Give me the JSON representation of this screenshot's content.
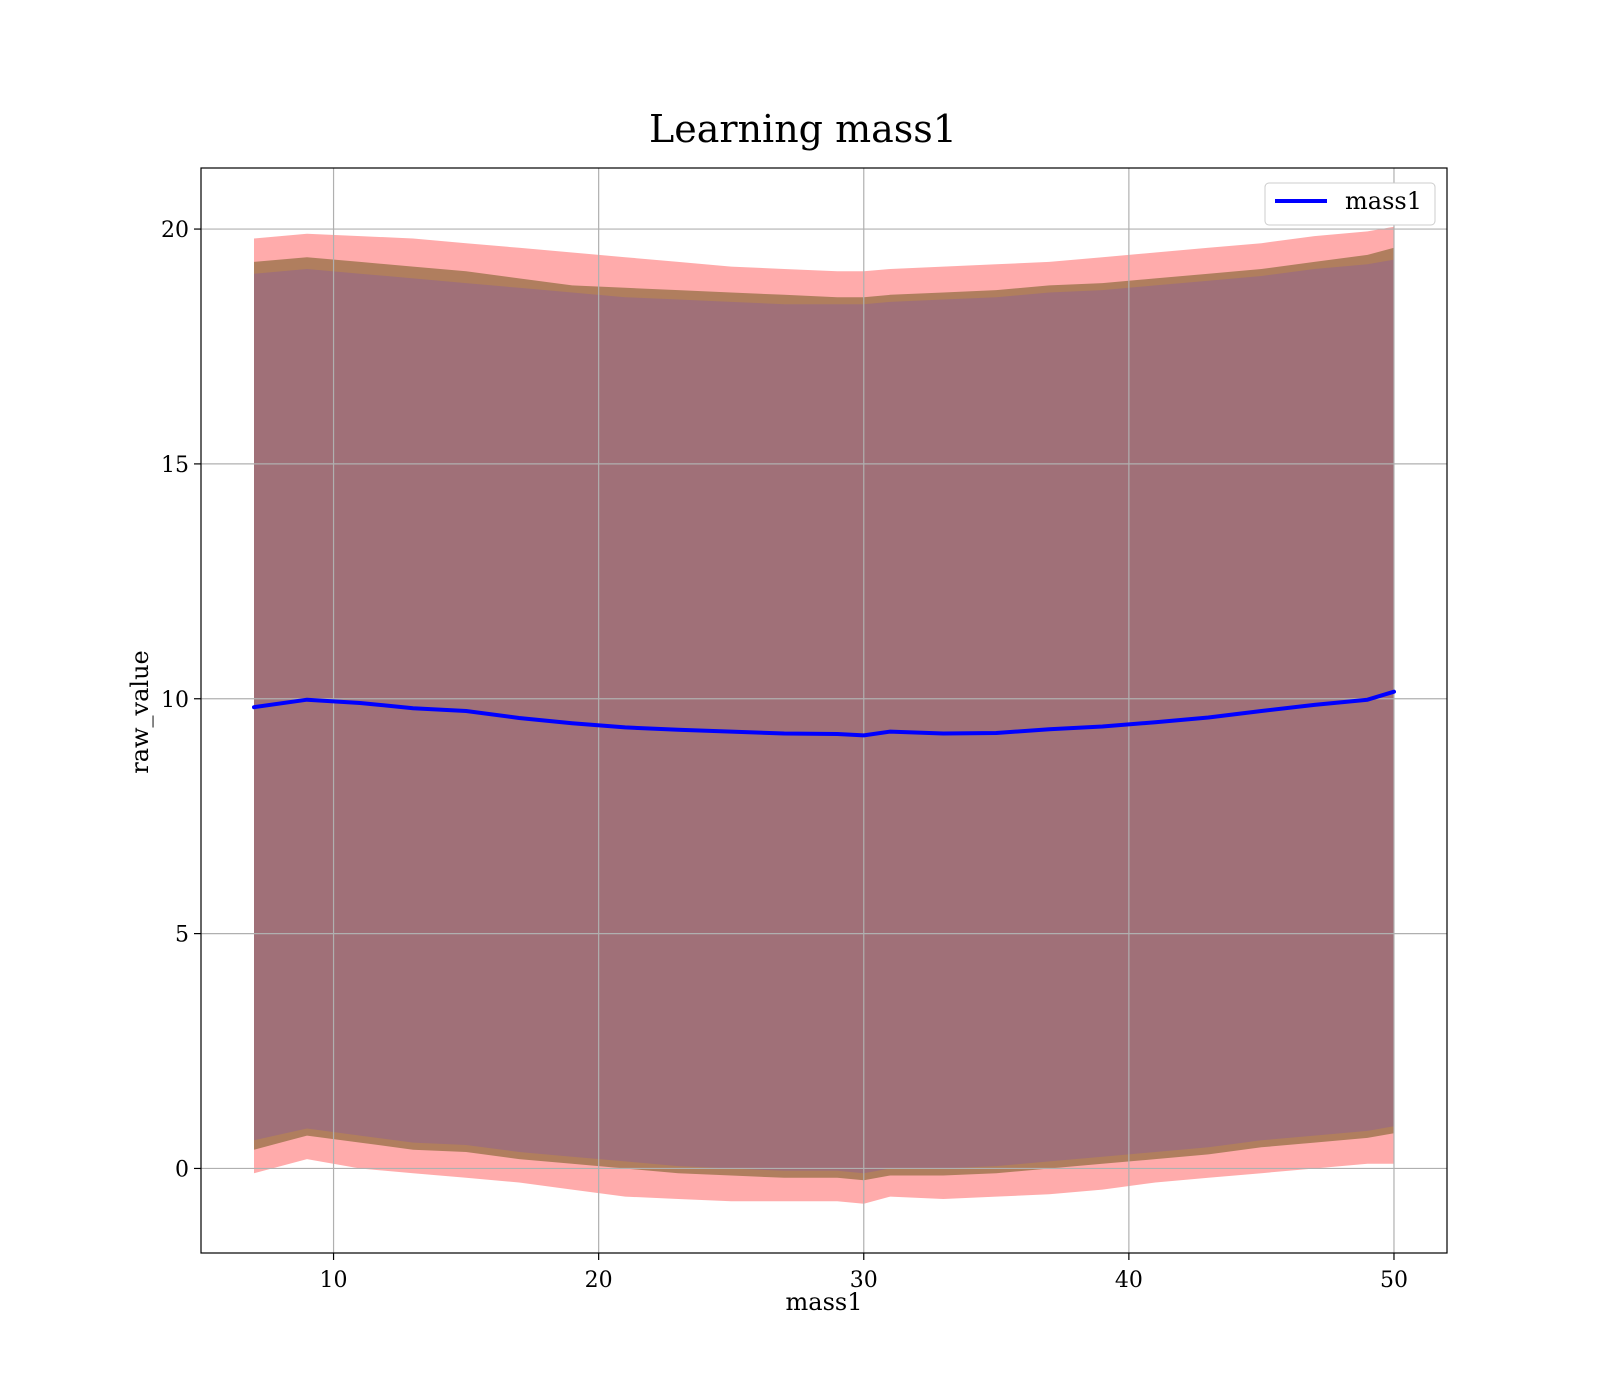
{
  "chart_data": {
    "type": "area",
    "title": "Learning mass1",
    "xlabel": "mass1",
    "ylabel": "raw_value",
    "xlim": [
      5,
      52
    ],
    "ylim": [
      -1.8,
      21.3
    ],
    "x_ticks": [
      10,
      20,
      30,
      40,
      50
    ],
    "y_ticks": [
      0,
      5,
      10,
      15,
      20
    ],
    "grid": true,
    "legend": {
      "placement": "top-right",
      "entries": [
        "mass1"
      ]
    },
    "x": [
      7.0,
      9.0,
      11.0,
      13.0,
      15.0,
      17.0,
      19.0,
      21.0,
      23.0,
      25.0,
      27.0,
      29.0,
      30.0,
      31.0,
      33.0,
      35.0,
      37.0,
      39.0,
      41.0,
      43.0,
      45.0,
      47.0,
      49.0,
      50.0
    ],
    "series": [
      {
        "name": "mass1",
        "color": "#0000ff",
        "values": [
          9.82,
          9.98,
          9.91,
          9.8,
          9.74,
          9.59,
          9.48,
          9.39,
          9.34,
          9.3,
          9.26,
          9.25,
          9.22,
          9.3,
          9.26,
          9.27,
          9.35,
          9.41,
          9.5,
          9.6,
          9.74,
          9.87,
          9.98,
          10.15
        ]
      }
    ],
    "bands": [
      {
        "color": "#ff6666",
        "lower": [
          -0.1,
          0.2,
          0.0,
          -0.1,
          -0.2,
          -0.3,
          -0.45,
          -0.6,
          -0.65,
          -0.7,
          -0.7,
          -0.7,
          -0.75,
          -0.6,
          -0.65,
          -0.6,
          -0.55,
          -0.45,
          -0.3,
          -0.2,
          -0.1,
          0.0,
          0.1,
          0.1
        ],
        "upper": [
          19.8,
          19.9,
          19.85,
          19.8,
          19.7,
          19.6,
          19.5,
          19.4,
          19.3,
          19.2,
          19.15,
          19.1,
          19.1,
          19.15,
          19.2,
          19.25,
          19.3,
          19.4,
          19.5,
          19.6,
          19.7,
          19.85,
          19.95,
          20.05
        ]
      },
      {
        "color": "#b07e5e",
        "lower": [
          0.4,
          0.7,
          0.55,
          0.4,
          0.35,
          0.2,
          0.1,
          0.0,
          -0.1,
          -0.15,
          -0.2,
          -0.2,
          -0.25,
          -0.15,
          -0.15,
          -0.1,
          0.0,
          0.1,
          0.2,
          0.3,
          0.45,
          0.55,
          0.65,
          0.75
        ],
        "upper": [
          19.3,
          19.4,
          19.3,
          19.2,
          19.1,
          18.95,
          18.8,
          18.75,
          18.7,
          18.65,
          18.6,
          18.55,
          18.55,
          18.6,
          18.65,
          18.7,
          18.8,
          18.85,
          18.95,
          19.05,
          19.15,
          19.3,
          19.45,
          19.6
        ]
      },
      {
        "color": "#a07078",
        "lower": [
          0.6,
          0.85,
          0.7,
          0.55,
          0.5,
          0.35,
          0.25,
          0.15,
          0.05,
          0.0,
          -0.05,
          -0.05,
          -0.1,
          0.0,
          0.0,
          0.05,
          0.15,
          0.25,
          0.35,
          0.45,
          0.6,
          0.7,
          0.8,
          0.9
        ],
        "upper": [
          19.05,
          19.15,
          19.05,
          18.95,
          18.85,
          18.75,
          18.65,
          18.55,
          18.5,
          18.45,
          18.4,
          18.4,
          18.4,
          18.45,
          18.5,
          18.55,
          18.65,
          18.7,
          18.8,
          18.9,
          19.0,
          19.15,
          19.25,
          19.35
        ]
      }
    ]
  }
}
